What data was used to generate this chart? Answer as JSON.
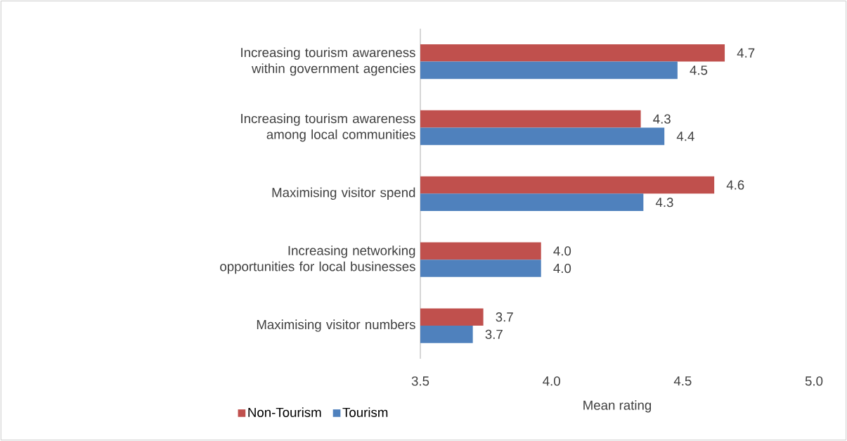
{
  "chart_data": {
    "type": "bar",
    "orientation": "horizontal",
    "categories": [
      "Increasing tourism awareness within government agencies",
      "Increasing tourism awareness among local communities",
      "Maximising visitor spend",
      "Increasing networking opportunities for local businesses",
      "Maximising visitor numbers"
    ],
    "series": [
      {
        "name": "Non-Tourism",
        "color": "#c0504d",
        "values": [
          4.66,
          4.34,
          4.62,
          3.96,
          3.74
        ],
        "value_labels": [
          "4.7",
          "4.3",
          "4.6",
          "4.0",
          "3.7"
        ]
      },
      {
        "name": "Tourism",
        "color": "#4f81bd",
        "values": [
          4.48,
          4.43,
          4.35,
          3.96,
          3.7
        ],
        "value_labels": [
          "4.5",
          "4.4",
          "4.3",
          "4.0",
          "3.7"
        ]
      }
    ],
    "xlim": [
      3.5,
      5.0
    ],
    "xticks": [
      3.5,
      {
        "value": 4.0,
        "label": "4.0"
      },
      4.5,
      {
        "value": 5.0,
        "label": "5.0"
      }
    ],
    "xlabel": "Mean rating",
    "legend": "bottom"
  }
}
